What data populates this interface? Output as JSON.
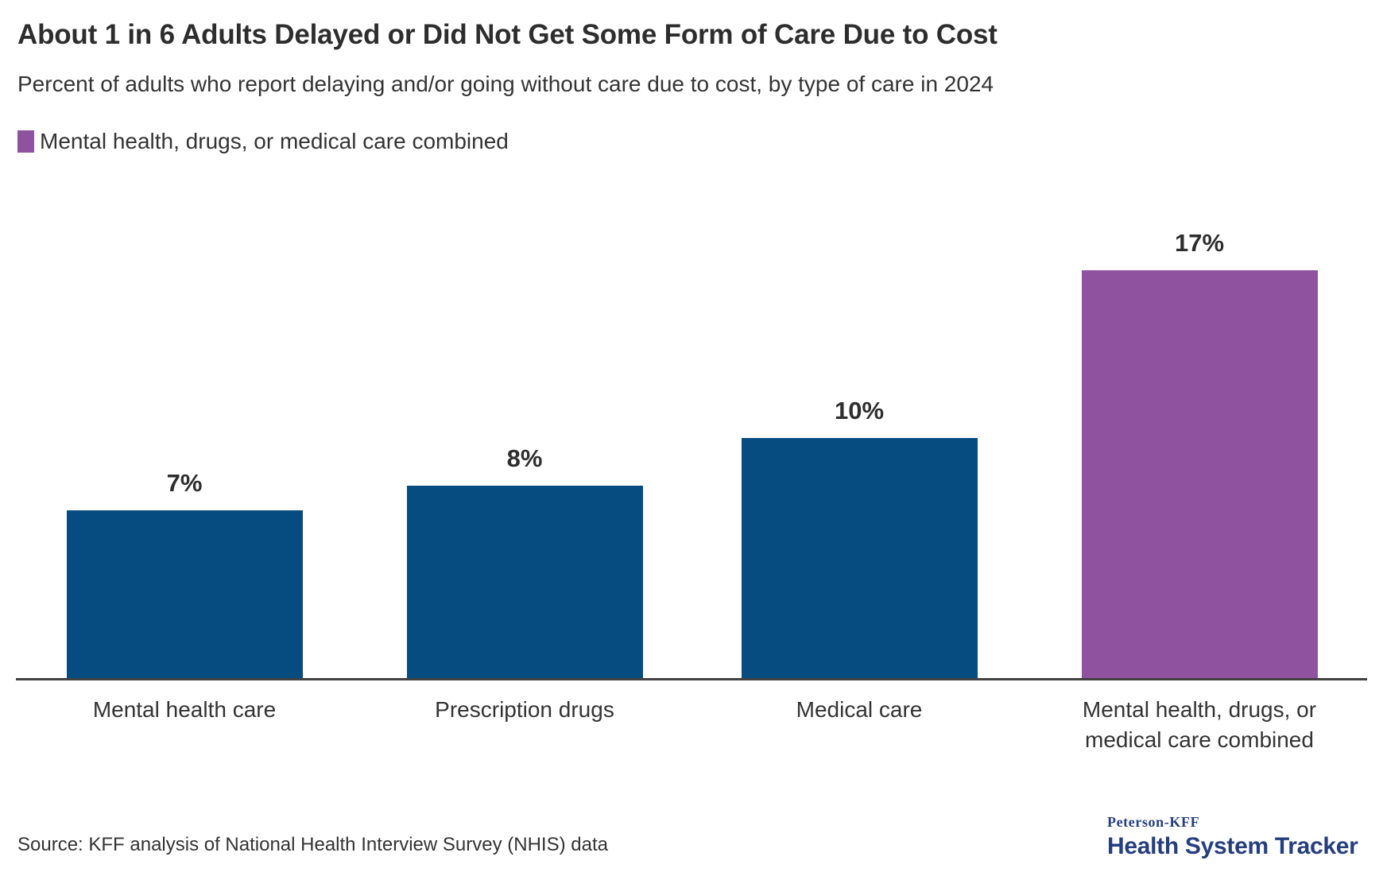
{
  "header": {
    "title": "About 1 in 6 Adults Delayed or Did Not Get Some Form of Care Due to Cost",
    "subtitle": "Percent of adults who report delaying and/or going without care due to cost, by type of care in 2024"
  },
  "legend": {
    "swatch_color": "#8F529F",
    "label": "Mental health, drugs, or medical care combined"
  },
  "chart_data": {
    "type": "bar",
    "title": "About 1 in 6 Adults Delayed or Did Not Get Some Form of Care Due to Cost",
    "subtitle": "Percent of adults who report delaying and/or going without care due to cost, by type of care in 2024",
    "categories": [
      "Mental health care",
      "Prescription drugs",
      "Medical care",
      "Mental health, drugs, or medical care combined"
    ],
    "values": [
      7,
      8,
      10,
      17
    ],
    "unit": "%",
    "data_labels": [
      "7%",
      "8%",
      "10%",
      "17%"
    ],
    "bar_colors": [
      "#074C80",
      "#074C80",
      "#074C80",
      "#8F529F"
    ],
    "highlighted_category": "Mental health, drugs, or medical care combined",
    "highlight_color": "#8F529F",
    "base_color": "#074C80",
    "ylim": [
      0,
      18.5
    ],
    "grid": false,
    "y_axis_visible": false,
    "x_axis_line_color": "#414141",
    "legend_position": "top-left",
    "legend_entries": [
      "Mental health, drugs, or medical care combined"
    ]
  },
  "footer": {
    "source": "Source: KFF analysis of National Health Interview Survey (NHIS) data",
    "logo_top": "Peterson-KFF",
    "logo_bottom": "Health System Tracker",
    "logo_color": "#253e7d"
  }
}
